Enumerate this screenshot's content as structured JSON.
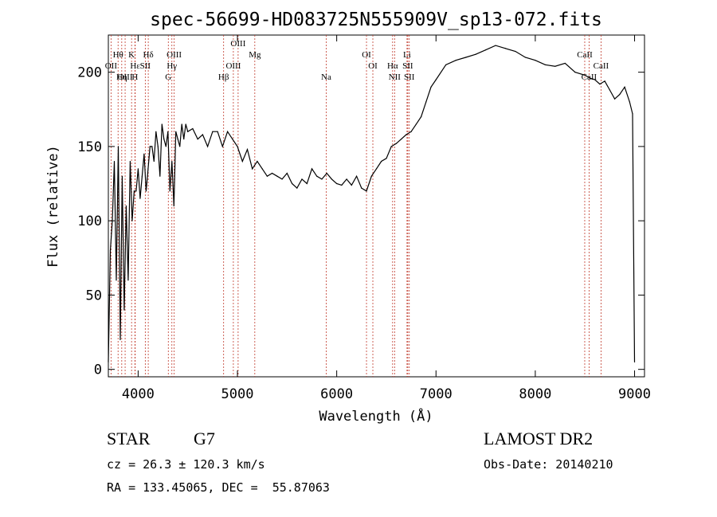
{
  "chart_data": {
    "type": "line",
    "title": "spec-56699-HD083725N555909V_sp13-072.fits",
    "xlabel": "Wavelength (Å)",
    "ylabel": "Flux (relative)",
    "xlim": [
      3700,
      9100
    ],
    "ylim": [
      -5,
      225
    ],
    "xticks": [
      4000,
      5000,
      6000,
      7000,
      8000,
      9000
    ],
    "yticks": [
      0,
      50,
      100,
      150,
      200
    ],
    "grid": false,
    "series": [
      {
        "x": [
          3700,
          3720,
          3740,
          3760,
          3780,
          3800,
          3820,
          3840,
          3860,
          3880,
          3900,
          3920,
          3940,
          3960,
          3980,
          4000,
          4020,
          4040,
          4060,
          4080,
          4100,
          4120,
          4140,
          4160,
          4180,
          4200,
          4220,
          4240,
          4260,
          4280,
          4300,
          4320,
          4340,
          4360,
          4380,
          4400,
          4420,
          4440,
          4460,
          4480,
          4500,
          4550,
          4600,
          4650,
          4700,
          4750,
          4800,
          4850,
          4900,
          4950,
          5000,
          5050,
          5100,
          5150,
          5200,
          5250,
          5300,
          5350,
          5400,
          5450,
          5500,
          5550,
          5600,
          5650,
          5700,
          5750,
          5800,
          5850,
          5900,
          5950,
          6000,
          6050,
          6100,
          6150,
          6200,
          6250,
          6300,
          6350,
          6400,
          6450,
          6500,
          6550,
          6600,
          6650,
          6700,
          6750,
          6800,
          6850,
          6900,
          6950,
          7000,
          7100,
          7200,
          7300,
          7400,
          7500,
          7600,
          7700,
          7800,
          7900,
          8000,
          8100,
          8200,
          8300,
          8400,
          8500,
          8550,
          8600,
          8650,
          8700,
          8750,
          8800,
          8850,
          8900,
          8950,
          8980,
          9000
        ],
        "y": [
          5,
          80,
          100,
          140,
          60,
          150,
          20,
          130,
          40,
          110,
          60,
          140,
          100,
          120,
          120,
          135,
          115,
          130,
          145,
          120,
          135,
          150,
          150,
          140,
          160,
          150,
          130,
          165,
          155,
          150,
          160,
          120,
          140,
          110,
          160,
          155,
          150,
          165,
          155,
          165,
          160,
          162,
          155,
          158,
          150,
          160,
          160,
          150,
          160,
          155,
          150,
          140,
          148,
          135,
          140,
          135,
          130,
          132,
          130,
          128,
          132,
          125,
          122,
          128,
          125,
          135,
          130,
          128,
          132,
          128,
          125,
          124,
          128,
          124,
          130,
          122,
          120,
          130,
          135,
          140,
          142,
          150,
          152,
          155,
          158,
          160,
          165,
          170,
          180,
          190,
          195,
          205,
          208,
          210,
          212,
          215,
          218,
          216,
          214,
          210,
          208,
          205,
          204,
          206,
          200,
          198,
          196,
          195,
          192,
          194,
          188,
          182,
          185,
          190,
          180,
          172,
          5
        ]
      }
    ],
    "lines": [
      {
        "name": "Hθ",
        "x": 3798,
        "row": 1
      },
      {
        "name": "OII",
        "x": 3727,
        "row": 2
      },
      {
        "name": "OIII",
        "x": 3869,
        "row": 3
      },
      {
        "name": "Hε",
        "x": 3970,
        "row": 2
      },
      {
        "name": "Hη",
        "x": 3835,
        "row": 3
      },
      {
        "name": "K",
        "x": 3934,
        "row": 1
      },
      {
        "name": "H",
        "x": 3968,
        "row": 3
      },
      {
        "name": "SII",
        "x": 4072,
        "row": 2
      },
      {
        "name": "Hδ",
        "x": 4102,
        "row": 1
      },
      {
        "name": "OIII",
        "x": 4363,
        "row": 1
      },
      {
        "name": "Hγ",
        "x": 4340,
        "row": 2
      },
      {
        "name": "G",
        "x": 4304,
        "row": 3
      },
      {
        "name": "Hβ",
        "x": 4861,
        "row": 3
      },
      {
        "name": "OIII",
        "x": 4959,
        "row": 2
      },
      {
        "name": "OIII",
        "x": 5007,
        "row": 0
      },
      {
        "name": "Mg",
        "x": 5175,
        "row": 1
      },
      {
        "name": "Na",
        "x": 5894,
        "row": 3
      },
      {
        "name": "OI",
        "x": 6300,
        "row": 1
      },
      {
        "name": "OI",
        "x": 6364,
        "row": 2
      },
      {
        "name": "Hα",
        "x": 6563,
        "row": 2
      },
      {
        "name": "NII",
        "x": 6583,
        "row": 3
      },
      {
        "name": "SII",
        "x": 6716,
        "row": 2
      },
      {
        "name": "Li",
        "x": 6708,
        "row": 1
      },
      {
        "name": "SII",
        "x": 6731,
        "row": 3
      },
      {
        "name": "CaII",
        "x": 8498,
        "row": 1
      },
      {
        "name": "CaII",
        "x": 8542,
        "row": 3
      },
      {
        "name": "CaII",
        "x": 8662,
        "row": 2
      }
    ]
  },
  "info": {
    "class_label": "STAR",
    "subclass_label": "G7",
    "survey_label": "LAMOST DR2",
    "cz_text": "cz = 26.3 ± 120.3 km/s",
    "obsdate_text": "Obs-Date: 20140210",
    "radec_text": "RA = 133.45065, DEC =  55.87063"
  }
}
